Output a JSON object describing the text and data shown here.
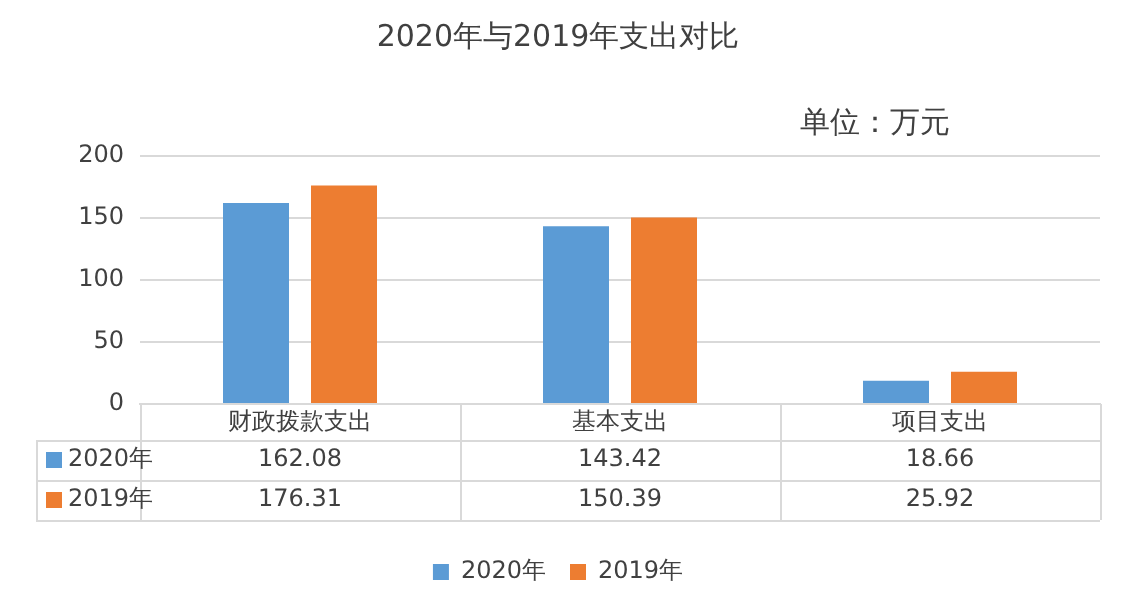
{
  "chart_data": {
    "type": "bar",
    "title": "2020年与2019年支出对比",
    "annotations": [
      "单位：万元"
    ],
    "categories": [
      "财政拨款支出",
      "基本支出",
      "项目支出"
    ],
    "series": [
      {
        "name": "2020年",
        "color": "#5b9bd5",
        "values": [
          162.08,
          143.42,
          18.66
        ]
      },
      {
        "name": "2019年",
        "color": "#ed7d31",
        "values": [
          176.31,
          150.39,
          25.92
        ]
      }
    ],
    "ylim": [
      0,
      200
    ],
    "yticks": [
      0,
      50,
      100,
      150,
      200
    ],
    "grid": "y",
    "legend": "bottom",
    "data_labels": true
  }
}
